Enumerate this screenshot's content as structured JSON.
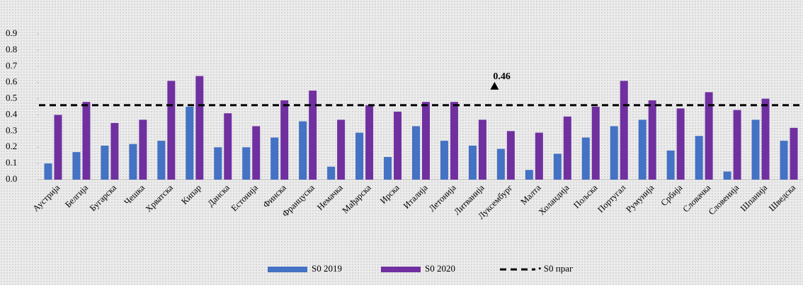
{
  "chart_data": {
    "type": "bar",
    "categories": [
      "Аустрија",
      "Белгија",
      "Бугарска",
      "Чешка",
      "Хрватска",
      "Кипар",
      "Данска",
      "Естонија",
      "Финска",
      "Француска",
      "Немачка",
      "Мађарска",
      "Ирска",
      "Италија",
      "Летонија",
      "Литванија",
      "Луксембург",
      "Малта",
      "Холандија",
      "Пољска",
      "Португал",
      "Румунија",
      "Србија",
      "Словачка",
      "Словенија",
      "Шпанија",
      "Шведска"
    ],
    "series": [
      {
        "name": "S0 2019",
        "color": "#4472c4",
        "values": [
          0.1,
          0.17,
          0.21,
          0.22,
          0.24,
          0.45,
          0.2,
          0.2,
          0.26,
          0.36,
          0.08,
          0.29,
          0.14,
          0.33,
          0.24,
          0.21,
          0.19,
          0.06,
          0.16,
          0.26,
          0.33,
          0.37,
          0.18,
          0.27,
          0.05,
          0.37,
          0.24
        ]
      },
      {
        "name": "S0 2020",
        "color": "#7030a0",
        "values": [
          0.4,
          0.48,
          0.35,
          0.37,
          0.61,
          0.64,
          0.41,
          0.33,
          0.49,
          0.55,
          0.37,
          0.46,
          0.42,
          0.48,
          0.48,
          0.37,
          0.3,
          0.29,
          0.39,
          0.45,
          0.61,
          0.49,
          0.44,
          0.54,
          0.43,
          0.5,
          0.32
        ]
      }
    ],
    "threshold": {
      "name": "• S0 праг",
      "value": 0.46,
      "color": "#000000"
    },
    "ylim": [
      0,
      0.9
    ],
    "yticks": [
      {
        "value": 0,
        "label": "0.0"
      },
      0.1,
      0.2,
      0.3,
      0.4,
      0.5,
      0.6,
      0.7,
      0.8,
      0.9
    ]
  }
}
